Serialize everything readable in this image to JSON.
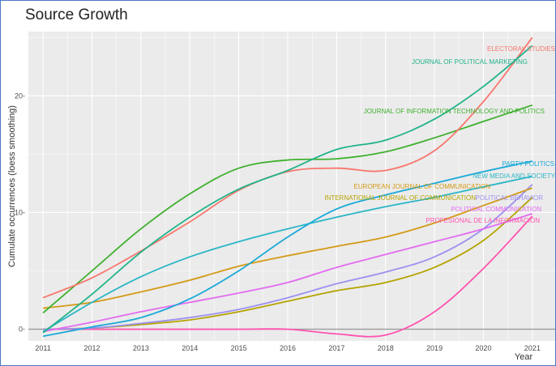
{
  "chart_data": {
    "type": "line",
    "title": "Source Growth",
    "xlabel": "Year",
    "ylabel": "Cumulate occurrences (loess smoothing)",
    "x": [
      2011,
      2012,
      2013,
      2014,
      2015,
      2016,
      2017,
      2018,
      2019,
      2020,
      2021
    ],
    "xlim": [
      2010.7,
      2021.5
    ],
    "ylim": [
      -1.0,
      25.5
    ],
    "yticks": [
      0,
      10,
      20
    ],
    "xticks": [
      2011,
      2012,
      2013,
      2014,
      2015,
      2016,
      2017,
      2018,
      2019,
      2020,
      2021
    ],
    "grid": true,
    "legend": "direct labels at line ends",
    "series": [
      {
        "name": "ELECTORAL STUDIES",
        "color": "#f8766d",
        "values": [
          2.7,
          4.4,
          6.7,
          9.2,
          11.9,
          13.5,
          13.8,
          13.6,
          15.3,
          19.5,
          25.0
        ]
      },
      {
        "name": "JOURNAL OF POLITICAL MARKETING",
        "color": "#21b38a",
        "values": [
          -0.3,
          3.0,
          6.6,
          9.6,
          12.0,
          13.6,
          15.4,
          16.2,
          18.0,
          20.8,
          24.3
        ]
      },
      {
        "name": "JOURNAL OF INFORMATION TECHNOLOGY AND POLITICS",
        "color": "#3fb02e",
        "values": [
          1.4,
          5.0,
          8.6,
          11.6,
          13.8,
          14.5,
          14.6,
          15.2,
          16.4,
          17.8,
          19.2
        ]
      },
      {
        "name": "PARTY POLITICS",
        "color": "#19a9d8",
        "values": [
          -0.6,
          0.2,
          1.0,
          2.6,
          5.0,
          7.9,
          10.3,
          11.5,
          12.5,
          13.5,
          14.4
        ]
      },
      {
        "name": "NEW MEDIA AND SOCIETY",
        "color": "#2ab6c6",
        "values": [
          -0.2,
          2.3,
          4.5,
          6.2,
          7.5,
          8.6,
          9.6,
          10.5,
          11.3,
          12.2,
          13.1
        ]
      },
      {
        "name": "EUROPEAN JOURNAL OF COMMUNICATION",
        "color": "#d39a15",
        "values": [
          1.8,
          2.3,
          3.2,
          4.2,
          5.4,
          6.3,
          7.1,
          7.9,
          9.1,
          10.6,
          12.1
        ]
      },
      {
        "name": "INTERNATIONAL JOURNAL OF COMMUNICATION",
        "color": "#b5a300",
        "values": [
          0.0,
          0.1,
          0.4,
          0.8,
          1.5,
          2.4,
          3.3,
          4.0,
          5.3,
          7.6,
          11.3
        ]
      },
      {
        "name": "POLITICAL BEHAVIOR",
        "color": "#9d90ef",
        "values": [
          0.0,
          0.1,
          0.5,
          1.0,
          1.7,
          2.7,
          3.9,
          4.9,
          6.2,
          8.6,
          12.4
        ]
      },
      {
        "name": "POLITICAL COMMUNICATION",
        "color": "#e36bf0",
        "values": [
          -0.2,
          0.6,
          1.5,
          2.3,
          3.1,
          4.0,
          5.3,
          6.4,
          7.5,
          8.6,
          9.9
        ]
      },
      {
        "name": "PROFESIONAL DE LA INFORMACION",
        "color": "#ff53b0",
        "values": [
          0.0,
          0.0,
          0.0,
          0.0,
          0.0,
          0.0,
          -0.4,
          -0.5,
          1.5,
          5.2,
          9.7
        ]
      }
    ]
  }
}
